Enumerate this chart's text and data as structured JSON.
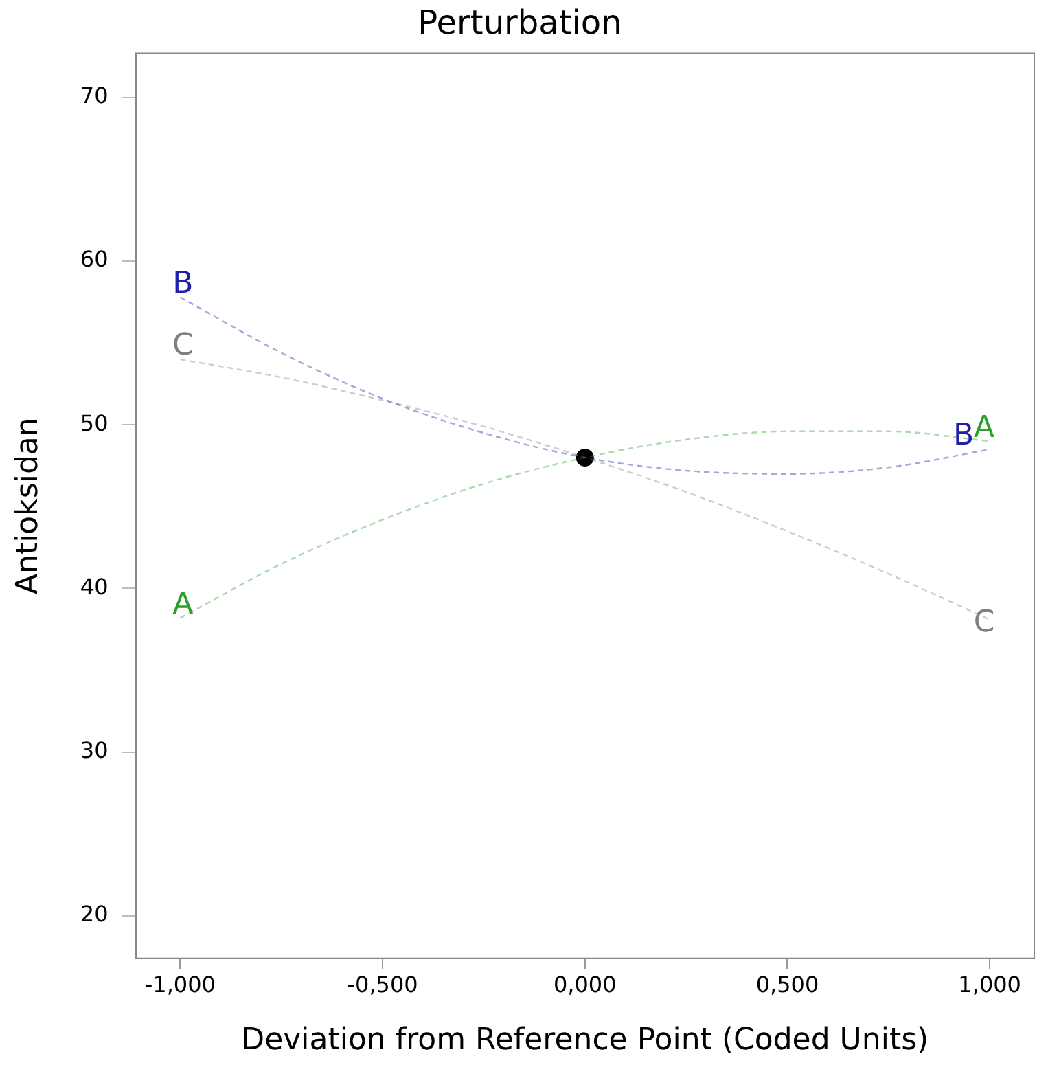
{
  "chart_data": {
    "type": "line",
    "title": "Perturbation",
    "xlabel": "Deviation from Reference Point (Coded Units)",
    "ylabel": "Antioksidan",
    "x": [
      -1,
      -0.75,
      -0.5,
      -0.25,
      0,
      0.25,
      0.5,
      0.75,
      1
    ],
    "series": [
      {
        "name": "A",
        "color": "#2ca02c",
        "values": [
          38.2,
          41.5,
          44.2,
          46.4,
          48,
          49.1,
          49.6,
          49.6,
          49.0
        ]
      },
      {
        "name": "B",
        "color": "#1f1fa8",
        "values": [
          57.8,
          54.4,
          51.6,
          49.5,
          48,
          47.2,
          47.0,
          47.4,
          48.5
        ]
      },
      {
        "name": "C",
        "color": "#808080",
        "values": [
          54.0,
          52.9,
          51.5,
          49.9,
          48,
          45.9,
          43.5,
          40.9,
          38.1
        ]
      },
      {
        "type": "scatter",
        "color": "#000000",
        "marker": "circle",
        "x": [
          0
        ],
        "values": [
          48
        ]
      }
    ],
    "xlim": [
      -1.11,
      1.11
    ],
    "xticks": [
      {
        "value": -1,
        "label": "-1,000"
      },
      {
        "value": -0.5,
        "label": "-0,500"
      },
      {
        "value": 0,
        "label": "0,000"
      },
      {
        "value": 0.5,
        "label": "0,500"
      },
      {
        "value": 1,
        "label": "1,000"
      }
    ],
    "ylim": [
      17.4,
      72.7
    ],
    "yticks": [
      20,
      30,
      40,
      50,
      60,
      70
    ],
    "grid": false,
    "legend": false,
    "line_style": "dashed"
  }
}
